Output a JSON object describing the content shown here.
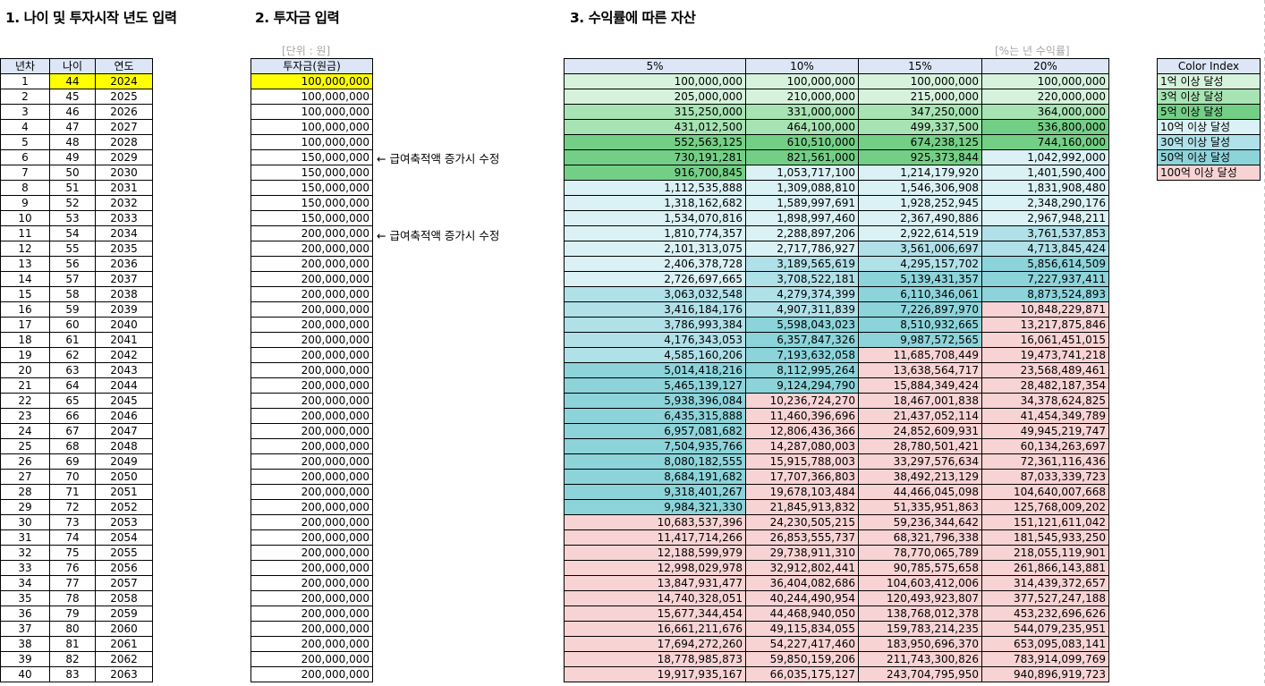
{
  "headings": {
    "h1": "1. 나이 및 투자시작 년도 입력",
    "h2": "2. 투자금 입력",
    "h3": "3. 수익률에 따른 자산"
  },
  "units": {
    "won": "[단위 : 원]",
    "rate": "[%는 년 수익률]"
  },
  "left_table": {
    "headers": [
      "년차",
      "나이",
      "연도"
    ]
  },
  "invest_table": {
    "header": "투자금(원금)"
  },
  "asset_table": {
    "headers": [
      "5%",
      "10%",
      "15%",
      "20%"
    ]
  },
  "notes": [
    "← 급여축적액 증가시 수정",
    "← 급여축적액 증가시 수정"
  ],
  "color_index": {
    "title": "Color Index",
    "items": [
      "1억 이상 달성",
      "3억 이상 달성",
      "5억 이상 달성",
      "10억 이상 달성",
      "30억 이상 달성",
      "50억 이상 달성",
      "100억 이상 달성"
    ],
    "colors": [
      "#d6f2dc",
      "#a7e3b3",
      "#74cf86",
      "#daf1f5",
      "#b0e0e8",
      "#8cd3da",
      "#f8d3d3"
    ]
  },
  "rows": [
    {
      "n": "1",
      "age": "44",
      "year": "2024",
      "inv": "100,000,000",
      "a5": "100,000,000",
      "a10": "100,000,000",
      "a15": "100,000,000",
      "a20": "100,000,000"
    },
    {
      "n": "2",
      "age": "45",
      "year": "2025",
      "inv": "100,000,000",
      "a5": "205,000,000",
      "a10": "210,000,000",
      "a15": "215,000,000",
      "a20": "220,000,000"
    },
    {
      "n": "3",
      "age": "46",
      "year": "2026",
      "inv": "100,000,000",
      "a5": "315,250,000",
      "a10": "331,000,000",
      "a15": "347,250,000",
      "a20": "364,000,000"
    },
    {
      "n": "4",
      "age": "47",
      "year": "2027",
      "inv": "100,000,000",
      "a5": "431,012,500",
      "a10": "464,100,000",
      "a15": "499,337,500",
      "a20": "536,800,000"
    },
    {
      "n": "5",
      "age": "48",
      "year": "2028",
      "inv": "100,000,000",
      "a5": "552,563,125",
      "a10": "610,510,000",
      "a15": "674,238,125",
      "a20": "744,160,000"
    },
    {
      "n": "6",
      "age": "49",
      "year": "2029",
      "inv": "150,000,000",
      "a5": "730,191,281",
      "a10": "821,561,000",
      "a15": "925,373,844",
      "a20": "1,042,992,000"
    },
    {
      "n": "7",
      "age": "50",
      "year": "2030",
      "inv": "150,000,000",
      "a5": "916,700,845",
      "a10": "1,053,717,100",
      "a15": "1,214,179,920",
      "a20": "1,401,590,400"
    },
    {
      "n": "8",
      "age": "51",
      "year": "2031",
      "inv": "150,000,000",
      "a5": "1,112,535,888",
      "a10": "1,309,088,810",
      "a15": "1,546,306,908",
      "a20": "1,831,908,480"
    },
    {
      "n": "9",
      "age": "52",
      "year": "2032",
      "inv": "150,000,000",
      "a5": "1,318,162,682",
      "a10": "1,589,997,691",
      "a15": "1,928,252,945",
      "a20": "2,348,290,176"
    },
    {
      "n": "10",
      "age": "53",
      "year": "2033",
      "inv": "150,000,000",
      "a5": "1,534,070,816",
      "a10": "1,898,997,460",
      "a15": "2,367,490,886",
      "a20": "2,967,948,211"
    },
    {
      "n": "11",
      "age": "54",
      "year": "2034",
      "inv": "200,000,000",
      "a5": "1,810,774,357",
      "a10": "2,288,897,206",
      "a15": "2,922,614,519",
      "a20": "3,761,537,853"
    },
    {
      "n": "12",
      "age": "55",
      "year": "2035",
      "inv": "200,000,000",
      "a5": "2,101,313,075",
      "a10": "2,717,786,927",
      "a15": "3,561,006,697",
      "a20": "4,713,845,424"
    },
    {
      "n": "13",
      "age": "56",
      "year": "2036",
      "inv": "200,000,000",
      "a5": "2,406,378,728",
      "a10": "3,189,565,619",
      "a15": "4,295,157,702",
      "a20": "5,856,614,509"
    },
    {
      "n": "14",
      "age": "57",
      "year": "2037",
      "inv": "200,000,000",
      "a5": "2,726,697,665",
      "a10": "3,708,522,181",
      "a15": "5,139,431,357",
      "a20": "7,227,937,411"
    },
    {
      "n": "15",
      "age": "58",
      "year": "2038",
      "inv": "200,000,000",
      "a5": "3,063,032,548",
      "a10": "4,279,374,399",
      "a15": "6,110,346,061",
      "a20": "8,873,524,893"
    },
    {
      "n": "16",
      "age": "59",
      "year": "2039",
      "inv": "200,000,000",
      "a5": "3,416,184,176",
      "a10": "4,907,311,839",
      "a15": "7,226,897,970",
      "a20": "10,848,229,871"
    },
    {
      "n": "17",
      "age": "60",
      "year": "2040",
      "inv": "200,000,000",
      "a5": "3,786,993,384",
      "a10": "5,598,043,023",
      "a15": "8,510,932,665",
      "a20": "13,217,875,846"
    },
    {
      "n": "18",
      "age": "61",
      "year": "2041",
      "inv": "200,000,000",
      "a5": "4,176,343,053",
      "a10": "6,357,847,326",
      "a15": "9,987,572,565",
      "a20": "16,061,451,015"
    },
    {
      "n": "19",
      "age": "62",
      "year": "2042",
      "inv": "200,000,000",
      "a5": "4,585,160,206",
      "a10": "7,193,632,058",
      "a15": "11,685,708,449",
      "a20": "19,473,741,218"
    },
    {
      "n": "20",
      "age": "63",
      "year": "2043",
      "inv": "200,000,000",
      "a5": "5,014,418,216",
      "a10": "8,112,995,264",
      "a15": "13,638,564,717",
      "a20": "23,568,489,461"
    },
    {
      "n": "21",
      "age": "64",
      "year": "2044",
      "inv": "200,000,000",
      "a5": "5,465,139,127",
      "a10": "9,124,294,790",
      "a15": "15,884,349,424",
      "a20": "28,482,187,354"
    },
    {
      "n": "22",
      "age": "65",
      "year": "2045",
      "inv": "200,000,000",
      "a5": "5,938,396,084",
      "a10": "10,236,724,270",
      "a15": "18,467,001,838",
      "a20": "34,378,624,825"
    },
    {
      "n": "23",
      "age": "66",
      "year": "2046",
      "inv": "200,000,000",
      "a5": "6,435,315,888",
      "a10": "11,460,396,696",
      "a15": "21,437,052,114",
      "a20": "41,454,349,789"
    },
    {
      "n": "24",
      "age": "67",
      "year": "2047",
      "inv": "200,000,000",
      "a5": "6,957,081,682",
      "a10": "12,806,436,366",
      "a15": "24,852,609,931",
      "a20": "49,945,219,747"
    },
    {
      "n": "25",
      "age": "68",
      "year": "2048",
      "inv": "200,000,000",
      "a5": "7,504,935,766",
      "a10": "14,287,080,003",
      "a15": "28,780,501,421",
      "a20": "60,134,263,697"
    },
    {
      "n": "26",
      "age": "69",
      "year": "2049",
      "inv": "200,000,000",
      "a5": "8,080,182,555",
      "a10": "15,915,788,003",
      "a15": "33,297,576,634",
      "a20": "72,361,116,436"
    },
    {
      "n": "27",
      "age": "70",
      "year": "2050",
      "inv": "200,000,000",
      "a5": "8,684,191,682",
      "a10": "17,707,366,803",
      "a15": "38,492,213,129",
      "a20": "87,033,339,723"
    },
    {
      "n": "28",
      "age": "71",
      "year": "2051",
      "inv": "200,000,000",
      "a5": "9,318,401,267",
      "a10": "19,678,103,484",
      "a15": "44,466,045,098",
      "a20": "104,640,007,668"
    },
    {
      "n": "29",
      "age": "72",
      "year": "2052",
      "inv": "200,000,000",
      "a5": "9,984,321,330",
      "a10": "21,845,913,832",
      "a15": "51,335,951,863",
      "a20": "125,768,009,202"
    },
    {
      "n": "30",
      "age": "73",
      "year": "2053",
      "inv": "200,000,000",
      "a5": "10,683,537,396",
      "a10": "24,230,505,215",
      "a15": "59,236,344,642",
      "a20": "151,121,611,042"
    },
    {
      "n": "31",
      "age": "74",
      "year": "2054",
      "inv": "200,000,000",
      "a5": "11,417,714,266",
      "a10": "26,853,555,737",
      "a15": "68,321,796,338",
      "a20": "181,545,933,250"
    },
    {
      "n": "32",
      "age": "75",
      "year": "2055",
      "inv": "200,000,000",
      "a5": "12,188,599,979",
      "a10": "29,738,911,310",
      "a15": "78,770,065,789",
      "a20": "218,055,119,901"
    },
    {
      "n": "33",
      "age": "76",
      "year": "2056",
      "inv": "200,000,000",
      "a5": "12,998,029,978",
      "a10": "32,912,802,441",
      "a15": "90,785,575,658",
      "a20": "261,866,143,881"
    },
    {
      "n": "34",
      "age": "77",
      "year": "2057",
      "inv": "200,000,000",
      "a5": "13,847,931,477",
      "a10": "36,404,082,686",
      "a15": "104,603,412,006",
      "a20": "314,439,372,657"
    },
    {
      "n": "35",
      "age": "78",
      "year": "2058",
      "inv": "200,000,000",
      "a5": "14,740,328,051",
      "a10": "40,244,490,954",
      "a15": "120,493,923,807",
      "a20": "377,527,247,188"
    },
    {
      "n": "36",
      "age": "79",
      "year": "2059",
      "inv": "200,000,000",
      "a5": "15,677,344,454",
      "a10": "44,468,940,050",
      "a15": "138,768,012,378",
      "a20": "453,232,696,626"
    },
    {
      "n": "37",
      "age": "80",
      "year": "2060",
      "inv": "200,000,000",
      "a5": "16,661,211,676",
      "a10": "49,115,834,055",
      "a15": "159,783,214,235",
      "a20": "544,079,235,951"
    },
    {
      "n": "38",
      "age": "81",
      "year": "2061",
      "inv": "200,000,000",
      "a5": "17,694,272,260",
      "a10": "54,227,417,460",
      "a15": "183,950,696,370",
      "a20": "653,095,083,141"
    },
    {
      "n": "39",
      "age": "82",
      "year": "2062",
      "inv": "200,000,000",
      "a5": "18,778,985,873",
      "a10": "59,850,159,206",
      "a15": "211,743,300,826",
      "a20": "783,914,099,769"
    },
    {
      "n": "40",
      "age": "83",
      "year": "2063",
      "inv": "200,000,000",
      "a5": "19,917,935,167",
      "a10": "66,035,175,127",
      "a15": "243,704,795,950",
      "a20": "940,896,919,723"
    }
  ]
}
